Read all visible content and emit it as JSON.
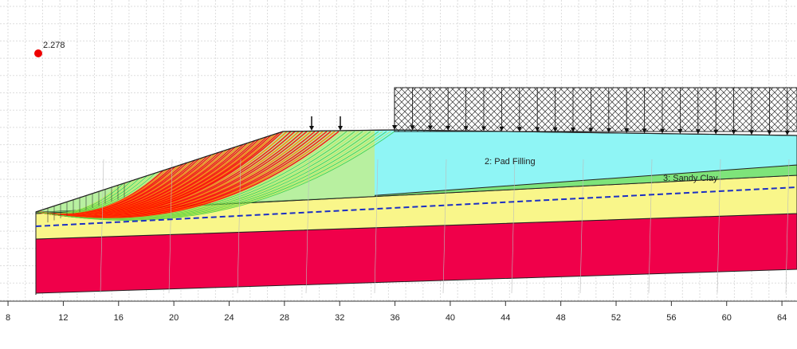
{
  "factor_of_safety": "2.278",
  "materials": [
    "2: Pad Filling",
    "3: Sandy Clay"
  ],
  "x_axis": {
    "xlim": [
      7.42,
      65.09
    ],
    "xticks": [
      8,
      12,
      16,
      20,
      24,
      28,
      32,
      36,
      40,
      44,
      48,
      52,
      56,
      60,
      64
    ]
  }
}
